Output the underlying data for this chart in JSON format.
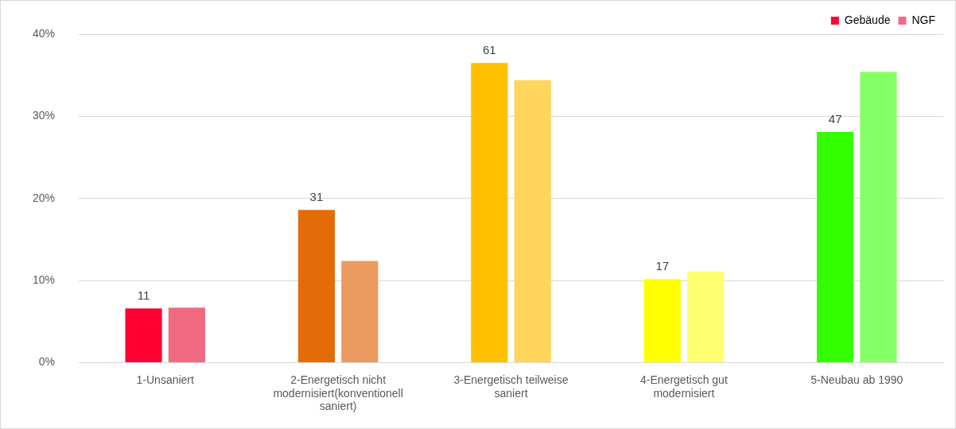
{
  "chart_data": {
    "type": "bar",
    "categories": [
      "1-Unsaniert",
      "2-Energetisch nicht modernisiert(konventionell saniert)",
      "3-Energetisch teilweise saniert",
      "4-Energetisch gut modernisiert",
      "5-Neubau ab 1990"
    ],
    "series": [
      {
        "name": "Gebäude",
        "colors": [
          "#ff0033",
          "#e36c09",
          "#ffc000",
          "#ffff00",
          "#33ff00"
        ],
        "values": [
          6.6,
          18.6,
          36.5,
          10.2,
          28.1
        ]
      },
      {
        "name": "NGF",
        "colors": [
          "#f26a82",
          "#eb9a60",
          "#ffd55c",
          "#ffff70",
          "#85ff66"
        ],
        "values": [
          6.7,
          12.4,
          34.4,
          11.1,
          35.4
        ]
      }
    ],
    "ylim": [
      0,
      40
    ],
    "yticks": [
      {
        "value": 0,
        "label": "0%"
      },
      {
        "value": 10,
        "label": "10%"
      },
      {
        "value": 20,
        "label": "20%"
      },
      {
        "value": 30,
        "label": "30%"
      },
      {
        "value": 40,
        "label": "40%"
      }
    ],
    "grid": "y",
    "legend": "top right",
    "annotations": [
      {
        "text": "11",
        "x": "1-Unsaniert",
        "y": 6.6
      },
      {
        "text": "31",
        "x": "2-Energetisch nicht modernisiert(konventionell saniert)",
        "y": 18.6
      },
      {
        "text": "61",
        "x": "3-Energetisch teilweise saniert",
        "y": 36.5
      },
      {
        "text": "17",
        "x": "4-Energetisch gut modernisiert",
        "y": 10.2
      },
      {
        "text": "47",
        "x": "5-Neubau ab 1990",
        "y": 28.1
      }
    ]
  }
}
